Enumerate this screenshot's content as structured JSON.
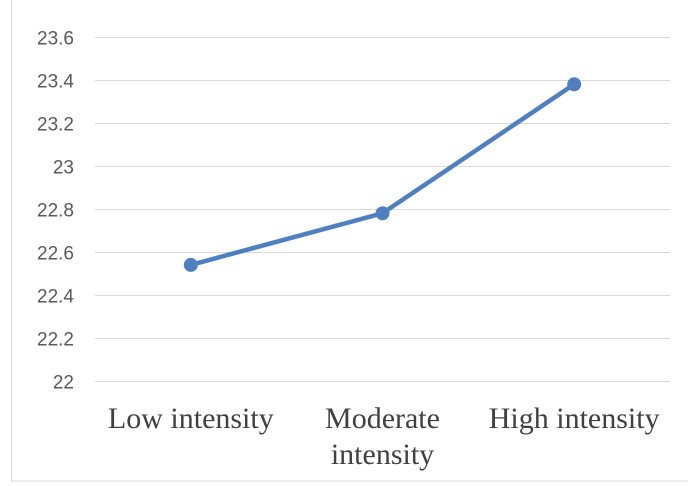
{
  "chart_data": {
    "type": "line",
    "categories": [
      "Low intensity",
      "Moderate intensity",
      "High intensity"
    ],
    "category_lines": [
      [
        "Low intensity"
      ],
      [
        "Moderate",
        "intensity"
      ],
      [
        "High intensity"
      ]
    ],
    "series": [
      {
        "values": [
          22.54,
          22.78,
          23.38
        ],
        "color": "#4f7fbf"
      }
    ],
    "y_ticks": [
      "22",
      "22.2",
      "22.4",
      "22.6",
      "22.8",
      "23",
      "23.2",
      "23.4",
      "23.6"
    ],
    "ylim": [
      22,
      23.6
    ],
    "grid": true,
    "legend": "none",
    "title": "",
    "xlabel": "",
    "ylabel": "",
    "colors": {
      "line": "#4f7fbf",
      "gridline": "#d9d9d9",
      "frame": "#d9d9d9"
    }
  }
}
